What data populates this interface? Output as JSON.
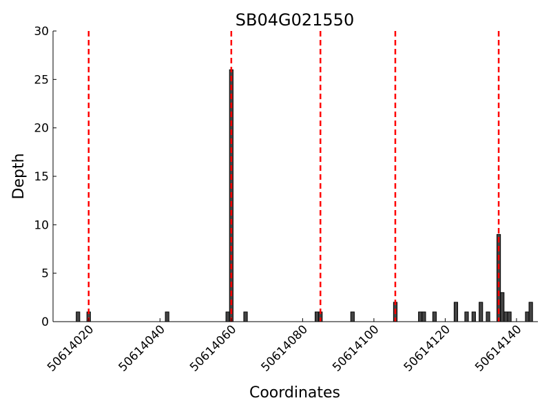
{
  "chart_data": {
    "type": "bar",
    "title": "SB04G021550",
    "xlabel": "Coordinates",
    "ylabel": "Depth",
    "xlim": [
      50614010,
      50614146
    ],
    "ylim": [
      0,
      30
    ],
    "yticks": [
      0,
      5,
      10,
      15,
      20,
      25,
      30
    ],
    "xticks": [
      50614020,
      50614040,
      50614060,
      50614080,
      50614100,
      50614120,
      50614140
    ],
    "grid": false,
    "bar_color": "#444444",
    "series": [
      {
        "x": [
          50614017,
          50614020,
          50614042,
          50614059,
          50614060,
          50614064,
          50614084,
          50614085,
          50614094,
          50614106,
          50614113,
          50614114,
          50614117,
          50614123,
          50614126,
          50614128,
          50614130,
          50614132,
          50614135,
          50614136,
          50614137,
          50614138,
          50614143,
          50614144
        ],
        "values": [
          1,
          1,
          1,
          1,
          26,
          1,
          1,
          1,
          1,
          2,
          1,
          1,
          1,
          2,
          1,
          1,
          2,
          1,
          9,
          3,
          1,
          1,
          1,
          2
        ]
      }
    ],
    "reference_lines": {
      "color": "#ff0000",
      "style": "dashed",
      "x": [
        50614020,
        50614060,
        50614085,
        50614106,
        50614135
      ]
    }
  }
}
